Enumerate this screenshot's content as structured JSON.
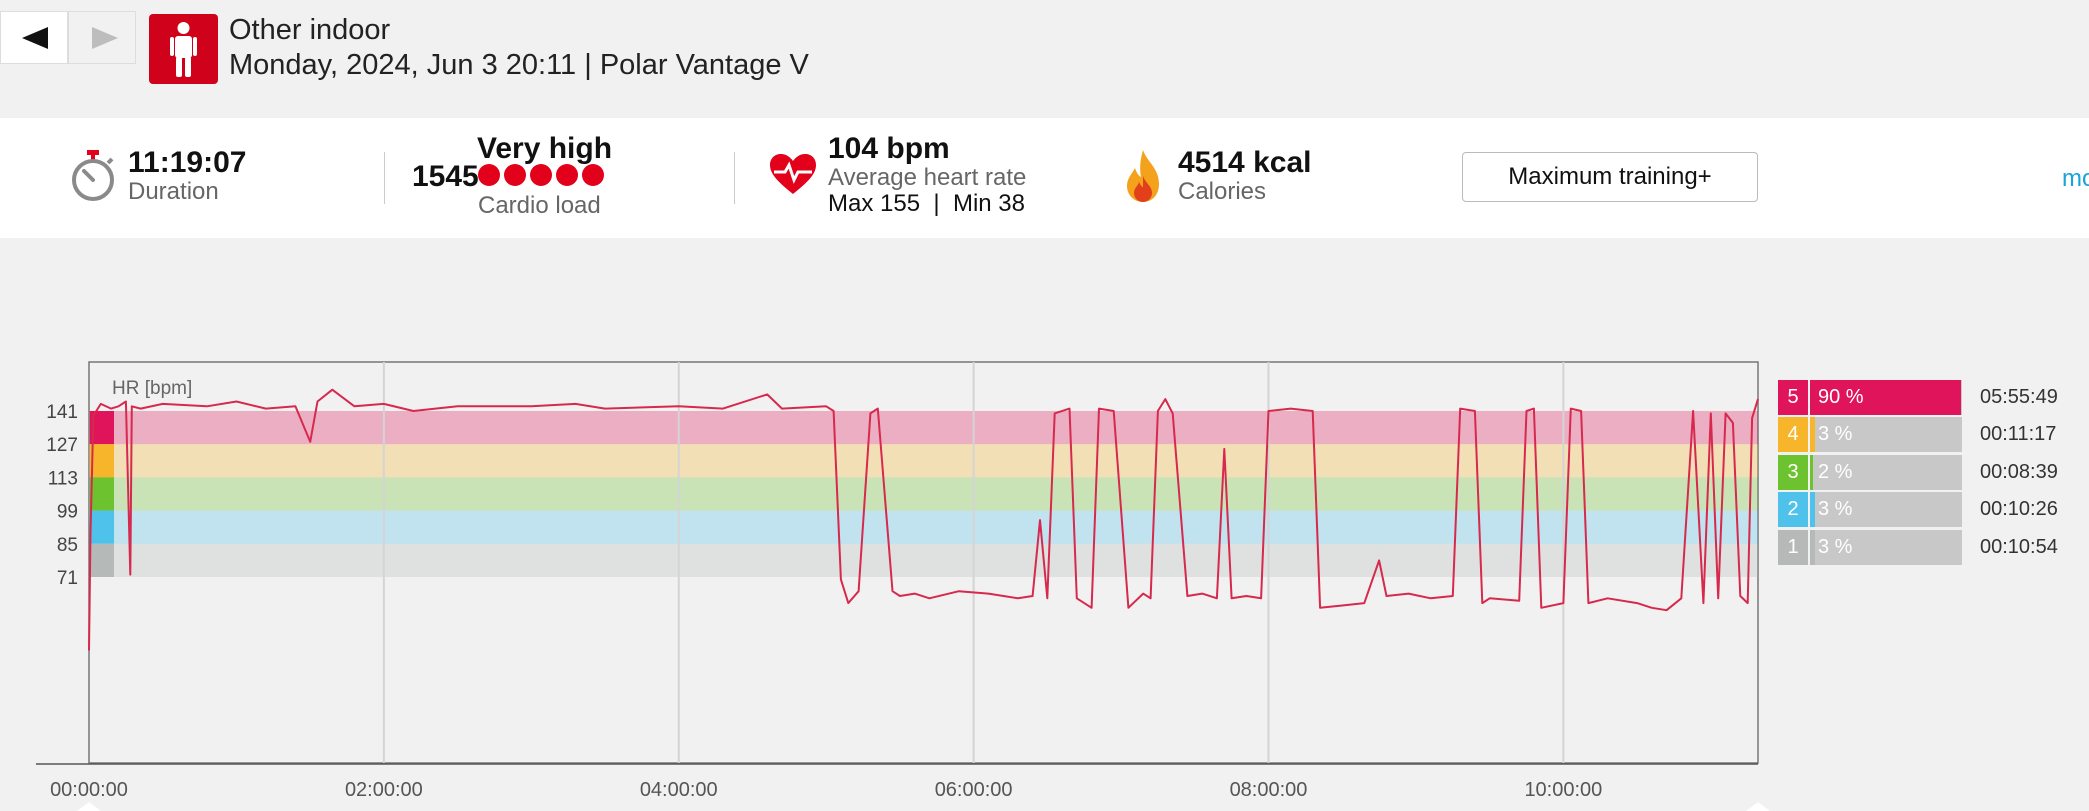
{
  "header": {
    "back_label": "Back",
    "forward_label": "Forward",
    "sport_icon": "person-standing-icon",
    "title": "Other indoor",
    "subtitle": "Monday, 2024, Jun 3 20:11 | Polar Vantage V"
  },
  "summary": {
    "duration": {
      "value": "11:19:07",
      "label": "Duration",
      "icon": "stopwatch-icon"
    },
    "cardio": {
      "number": "1545",
      "level": "Very high",
      "dots": 5,
      "label": "Cardio load"
    },
    "heart_rate": {
      "value": "104 bpm",
      "label": "Average heart rate",
      "max_min": "Max 155  |  Min 38",
      "icon": "heart-icon"
    },
    "calories": {
      "value": "4514 kcal",
      "label": "Calories",
      "icon": "flame-icon"
    },
    "training_button": "Maximum training+",
    "more_link": "mo"
  },
  "colors": {
    "accent": "#d0011b",
    "line": "#d6294d",
    "zone5": "#e0145a",
    "zone4": "#f6b52a",
    "zone3": "#6cc22f",
    "zone2": "#4ec2ea",
    "zone1": "#b5b9b8"
  },
  "chart_data": {
    "type": "line",
    "ylabel": "HR [bpm]",
    "yticks": [
      141,
      127,
      113,
      99,
      85,
      71
    ],
    "xticks": [
      "00:00:00",
      "02:00:00",
      "04:00:00",
      "06:00:00",
      "08:00:00",
      "10:00:00"
    ],
    "x_range_hours": [
      0,
      11.32
    ],
    "y_range": [
      38,
      155
    ],
    "grid": true,
    "series": [
      {
        "points": [
          [
            0.0,
            40
          ],
          [
            0.01,
            90
          ],
          [
            0.03,
            139
          ],
          [
            0.08,
            144
          ],
          [
            0.15,
            142
          ],
          [
            0.2,
            143
          ],
          [
            0.25,
            145
          ],
          [
            0.28,
            72
          ],
          [
            0.29,
            143
          ],
          [
            0.35,
            142
          ],
          [
            0.5,
            144
          ],
          [
            0.8,
            143
          ],
          [
            1.0,
            145
          ],
          [
            1.2,
            142
          ],
          [
            1.4,
            143
          ],
          [
            1.5,
            128
          ],
          [
            1.55,
            145
          ],
          [
            1.65,
            150
          ],
          [
            1.8,
            143
          ],
          [
            2.0,
            144
          ],
          [
            2.2,
            141
          ],
          [
            2.5,
            143
          ],
          [
            3.0,
            143
          ],
          [
            3.3,
            144
          ],
          [
            3.5,
            142
          ],
          [
            4.0,
            143
          ],
          [
            4.3,
            142
          ],
          [
            4.6,
            148
          ],
          [
            4.7,
            142
          ],
          [
            5.0,
            143
          ],
          [
            5.05,
            141
          ],
          [
            5.1,
            70
          ],
          [
            5.15,
            60
          ],
          [
            5.22,
            65
          ],
          [
            5.3,
            140
          ],
          [
            5.35,
            142
          ],
          [
            5.45,
            65
          ],
          [
            5.5,
            63
          ],
          [
            5.6,
            64
          ],
          [
            5.7,
            62
          ],
          [
            5.9,
            65
          ],
          [
            6.1,
            64
          ],
          [
            6.3,
            62
          ],
          [
            6.4,
            63
          ],
          [
            6.45,
            95
          ],
          [
            6.5,
            62
          ],
          [
            6.55,
            140
          ],
          [
            6.65,
            142
          ],
          [
            6.7,
            62
          ],
          [
            6.8,
            58
          ],
          [
            6.85,
            142
          ],
          [
            6.95,
            141
          ],
          [
            7.05,
            58
          ],
          [
            7.15,
            64
          ],
          [
            7.2,
            62
          ],
          [
            7.25,
            141
          ],
          [
            7.3,
            146
          ],
          [
            7.35,
            140
          ],
          [
            7.45,
            63
          ],
          [
            7.55,
            64
          ],
          [
            7.65,
            62
          ],
          [
            7.7,
            125
          ],
          [
            7.75,
            62
          ],
          [
            7.85,
            63
          ],
          [
            7.95,
            62
          ],
          [
            8.0,
            141
          ],
          [
            8.15,
            142
          ],
          [
            8.3,
            141
          ],
          [
            8.35,
            58
          ],
          [
            8.5,
            59
          ],
          [
            8.65,
            60
          ],
          [
            8.75,
            78
          ],
          [
            8.8,
            63
          ],
          [
            8.95,
            64
          ],
          [
            9.1,
            62
          ],
          [
            9.25,
            63
          ],
          [
            9.3,
            142
          ],
          [
            9.4,
            141
          ],
          [
            9.45,
            60
          ],
          [
            9.5,
            62
          ],
          [
            9.7,
            61
          ],
          [
            9.75,
            141
          ],
          [
            9.8,
            142
          ],
          [
            9.85,
            58
          ],
          [
            10.0,
            60
          ],
          [
            10.05,
            142
          ],
          [
            10.12,
            141
          ],
          [
            10.17,
            60
          ],
          [
            10.3,
            62
          ],
          [
            10.5,
            60
          ],
          [
            10.6,
            58
          ],
          [
            10.7,
            57
          ],
          [
            10.8,
            62
          ],
          [
            10.88,
            141
          ],
          [
            10.95,
            60
          ],
          [
            11.0,
            140
          ],
          [
            11.05,
            62
          ],
          [
            11.1,
            140
          ],
          [
            11.15,
            136
          ],
          [
            11.2,
            63
          ],
          [
            11.25,
            60
          ],
          [
            11.28,
            138
          ],
          [
            11.32,
            146
          ]
        ]
      }
    ]
  },
  "zones": [
    {
      "num": "5",
      "pct": "90 %",
      "fraction": 0.9,
      "time": "05:55:49"
    },
    {
      "num": "4",
      "pct": "3 %",
      "fraction": 0.03,
      "time": "00:11:17"
    },
    {
      "num": "3",
      "pct": "2 %",
      "fraction": 0.02,
      "time": "00:08:39"
    },
    {
      "num": "2",
      "pct": "3 %",
      "fraction": 0.03,
      "time": "00:10:26"
    },
    {
      "num": "1",
      "pct": "3 %",
      "fraction": 0.03,
      "time": "00:10:54"
    }
  ]
}
